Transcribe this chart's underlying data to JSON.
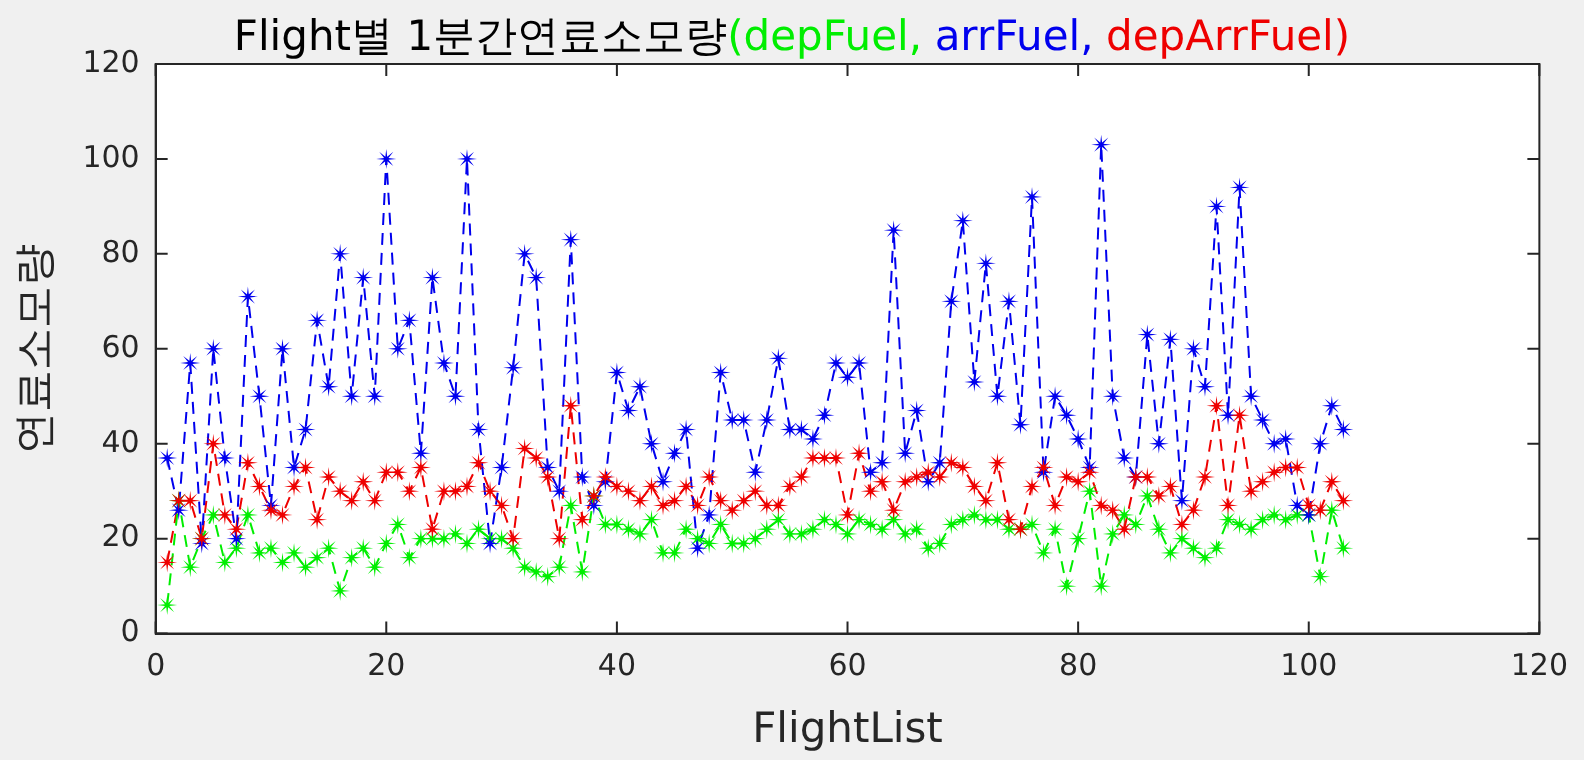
{
  "chart_data": {
    "type": "line",
    "title": "Flight별 1분간연료소모량",
    "xlabel": "FlightList",
    "ylabel": "연료소모량",
    "x": [
      1,
      2,
      3,
      4,
      5,
      6,
      7,
      8,
      9,
      10,
      11,
      12,
      13,
      14,
      15,
      16,
      17,
      18,
      19,
      20,
      21,
      22,
      23,
      24,
      25,
      26,
      27,
      28,
      29,
      30,
      31,
      32,
      33,
      34,
      35,
      36,
      37,
      38,
      39,
      40,
      41,
      42,
      43,
      44,
      45,
      46,
      47,
      48,
      49,
      50,
      51,
      52,
      53,
      54,
      55,
      56,
      57,
      58,
      59,
      60,
      61,
      62,
      63,
      64,
      65,
      66,
      67,
      68,
      69,
      70,
      71,
      72,
      73,
      74,
      75,
      76,
      77,
      78,
      79,
      80,
      81,
      82,
      83,
      84,
      85,
      86,
      87,
      88,
      89,
      90,
      91,
      92,
      93,
      94,
      95,
      96,
      97,
      98,
      99,
      100,
      101,
      102,
      103
    ],
    "series": [
      {
        "name": "(depFuel,",
        "color": "#00ee00",
        "values": [
          6,
          28,
          14,
          20,
          25,
          15,
          18,
          25,
          17,
          18,
          15,
          17,
          14,
          16,
          18,
          9,
          16,
          18,
          14,
          19,
          23,
          16,
          20,
          20,
          20,
          21,
          19,
          22,
          20,
          20,
          18,
          14,
          13,
          12,
          14,
          27,
          13,
          29,
          23,
          23,
          22,
          21,
          24,
          17,
          17,
          22,
          20,
          19,
          23,
          19,
          19,
          20,
          22,
          24,
          21,
          21,
          22,
          24,
          23,
          21,
          24,
          23,
          22,
          24,
          21,
          22,
          18,
          19,
          23,
          24,
          25,
          24,
          24,
          22,
          22,
          23,
          17,
          22,
          10,
          20,
          30,
          10,
          21,
          25,
          23,
          29,
          22,
          17,
          20,
          18,
          16,
          18,
          24,
          23,
          22,
          24,
          25,
          24,
          25,
          25,
          12,
          26,
          18
        ]
      },
      {
        "name": "arrFuel,",
        "color": "#0000ee",
        "values": [
          37,
          26,
          57,
          19,
          60,
          37,
          20,
          71,
          50,
          27,
          60,
          35,
          43,
          66,
          52,
          80,
          50,
          75,
          50,
          100,
          60,
          66,
          38,
          75,
          57,
          50,
          100,
          43,
          19,
          35,
          56,
          80,
          75,
          35,
          30,
          83,
          33,
          27,
          32,
          55,
          47,
          52,
          40,
          32,
          38,
          43,
          18,
          25,
          55,
          45,
          45,
          34,
          45,
          58,
          43,
          43,
          41,
          46,
          57,
          54,
          57,
          34,
          36,
          85,
          38,
          47,
          32,
          36,
          70,
          87,
          53,
          78,
          50,
          70,
          44,
          92,
          34,
          50,
          46,
          41,
          35,
          103,
          50,
          37,
          33,
          63,
          40,
          62,
          28,
          60,
          52,
          90,
          46,
          94,
          50,
          45,
          40,
          41,
          27,
          25,
          40,
          48,
          43
        ]
      },
      {
        "name": "depArrFuel)",
        "color": "#ee0000",
        "values": [
          15,
          28,
          28,
          20,
          40,
          25,
          22,
          36,
          31,
          26,
          25,
          31,
          35,
          24,
          33,
          30,
          28,
          32,
          28,
          34,
          34,
          30,
          35,
          22,
          30,
          30,
          31,
          36,
          30,
          27,
          20,
          39,
          37,
          33,
          20,
          48,
          24,
          29,
          33,
          31,
          30,
          28,
          31,
          27,
          28,
          31,
          27,
          33,
          28,
          26,
          28,
          30,
          27,
          27,
          31,
          33,
          37,
          37,
          37,
          25,
          38,
          30,
          32,
          26,
          32,
          33,
          34,
          33,
          36,
          35,
          31,
          28,
          36,
          24,
          22,
          31,
          35,
          27,
          33,
          32,
          34,
          27,
          26,
          22,
          33,
          33,
          29,
          31,
          23,
          26,
          33,
          48,
          27,
          46,
          30,
          32,
          34,
          35,
          35,
          27,
          26,
          32,
          28
        ]
      }
    ],
    "xlim": [
      0,
      120
    ],
    "xticks": [
      0,
      20,
      40,
      60,
      80,
      100,
      120
    ],
    "ylim": [
      0,
      120
    ],
    "yticks": [
      0,
      20,
      40,
      60,
      80,
      100,
      120
    ],
    "grid": false,
    "legend": false,
    "marker": "star",
    "line_style": "dashed"
  }
}
